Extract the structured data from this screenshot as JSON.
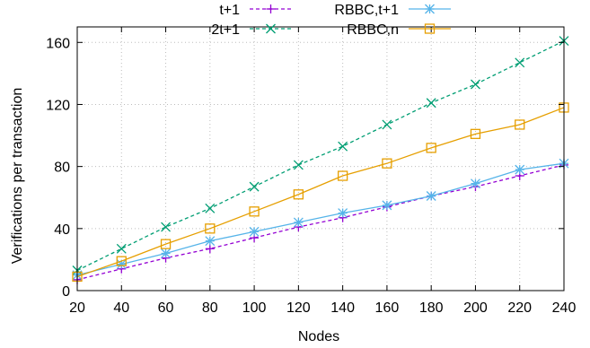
{
  "chart_data": {
    "type": "line",
    "title": "",
    "xlabel": "Nodes",
    "ylabel": "Verifications per transaction",
    "x": [
      20,
      40,
      60,
      80,
      100,
      120,
      140,
      160,
      180,
      200,
      220,
      240
    ],
    "xlim": [
      20,
      240
    ],
    "ylim": [
      0,
      170
    ],
    "xticks": [
      20,
      40,
      60,
      80,
      100,
      120,
      140,
      160,
      180,
      200,
      220,
      240
    ],
    "yticks": [
      0,
      40,
      80,
      120,
      160
    ],
    "grid": true,
    "legend_position": "top",
    "series": [
      {
        "name": "t+1",
        "color": "#9400d3",
        "marker": "plus",
        "dash": "4,3",
        "values": [
          7,
          14,
          21,
          27,
          34,
          41,
          47,
          54,
          61,
          67,
          74,
          81
        ]
      },
      {
        "name": "2t+1",
        "color": "#009e73",
        "marker": "cross",
        "dash": "4,3",
        "values": [
          13,
          27,
          41,
          53,
          67,
          81,
          93,
          107,
          121,
          133,
          147,
          161
        ]
      },
      {
        "name": "RBBC,t+1",
        "color": "#56b4e9",
        "marker": "star",
        "dash": "",
        "values": [
          10,
          17,
          24,
          32,
          38,
          44,
          50,
          55,
          61,
          69,
          78,
          82
        ]
      },
      {
        "name": "RBBC,n",
        "color": "#e69f00",
        "marker": "square",
        "dash": "",
        "values": [
          9,
          19,
          30,
          40,
          51,
          62,
          74,
          82,
          92,
          101,
          107,
          118
        ]
      }
    ]
  }
}
